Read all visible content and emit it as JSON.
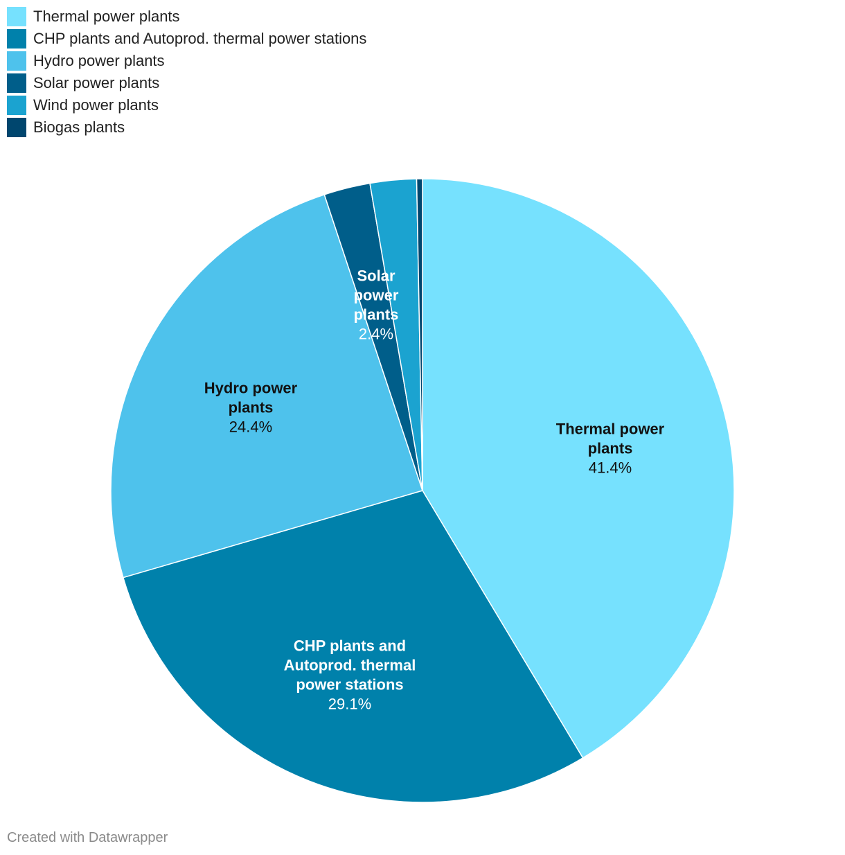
{
  "chart_data": {
    "type": "pie",
    "title": "",
    "categories": [
      "Thermal power plants",
      "CHP plants and Autoprod. thermal power stations",
      "Hydro power plants",
      "Solar power plants",
      "Wind power plants",
      "Biogas plants"
    ],
    "values": [
      41.4,
      29.1,
      24.4,
      2.4,
      2.4,
      0.3
    ],
    "unit": "%",
    "colors": [
      "#76e1fe",
      "#0081ab",
      "#4ec2ec",
      "#005e8a",
      "#1ba3d0",
      "#00466e"
    ],
    "label_text_colors": [
      "#111111",
      "#ffffff",
      "#111111",
      "#ffffff",
      "#ffffff",
      "#ffffff"
    ],
    "slice_labels": [
      {
        "lines": [
          "Thermal power",
          "plants"
        ],
        "value": "41.4%"
      },
      {
        "lines": [
          "CHP plants and",
          "Autoprod. thermal",
          "power stations"
        ],
        "value": "29.1%"
      },
      {
        "lines": [
          "Hydro power",
          "plants"
        ],
        "value": "24.4%"
      },
      {
        "lines": [
          "Solar",
          "power",
          "plants"
        ],
        "value": "2.4%"
      },
      null,
      null
    ],
    "legend_position": "top-left"
  },
  "footer": {
    "credit": "Created with Datawrapper"
  }
}
